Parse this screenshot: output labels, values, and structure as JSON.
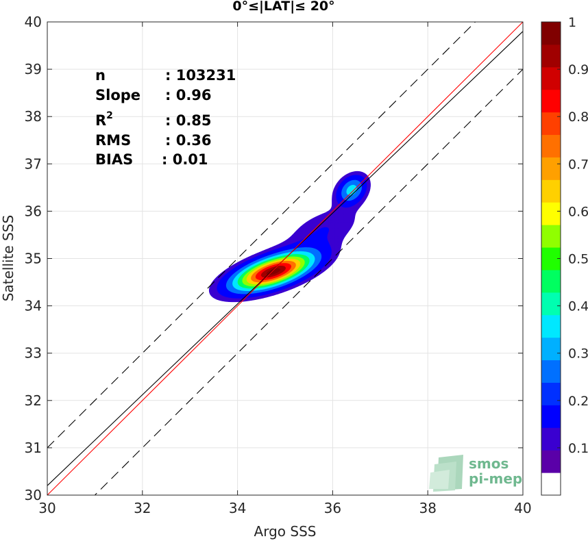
{
  "chart_data": {
    "type": "heatmap",
    "title": "0°≤|LAT|≤ 20°",
    "xlabel": "Argo SSS",
    "ylabel": "Satellite SSS",
    "xlim": [
      30,
      40
    ],
    "ylim": [
      30,
      40
    ],
    "xticks": [
      "30",
      "32",
      "34",
      "36",
      "38",
      "40"
    ],
    "yticks": [
      "30",
      "31",
      "32",
      "33",
      "34",
      "35",
      "36",
      "37",
      "38",
      "39",
      "40"
    ],
    "grid": true,
    "stats": [
      {
        "label": "n",
        "value": ": 103231"
      },
      {
        "label": "Slope",
        "value": ": 0.96"
      },
      {
        "label": "R",
        "sup": "2",
        "value": ": 0.85"
      },
      {
        "label": "RMS",
        "value": ": 0.36"
      },
      {
        "label": "BIAS",
        "value": ": 0.01"
      }
    ],
    "lines": {
      "identity": {
        "slope": 1.0,
        "intercept": 0.0,
        "color": "#ff0000"
      },
      "regression": {
        "slope": 0.96,
        "intercept": 1.4,
        "color": "#000000"
      },
      "upper_bound": {
        "slope": 1.0,
        "intercept": 1.0,
        "color": "#000000"
      },
      "lower_bound": {
        "slope": 1.0,
        "intercept": -1.0,
        "color": "#000000"
      }
    },
    "density": {
      "peaks": [
        {
          "x": 34.75,
          "y": 34.72,
          "sx": 0.55,
          "sy": 0.26,
          "corr": 0.62,
          "amp": 1.0
        },
        {
          "x": 36.4,
          "y": 36.45,
          "sx": 0.2,
          "sy": 0.2,
          "corr": 0.3,
          "amp": 0.34
        },
        {
          "x": 35.8,
          "y": 35.6,
          "sx": 0.55,
          "sy": 0.35,
          "corr": 0.55,
          "amp": 0.1
        }
      ],
      "levels": [
        0.05,
        0.1,
        0.2,
        0.3,
        0.4,
        0.5,
        0.6,
        0.7,
        0.8,
        0.9,
        0.97
      ]
    },
    "colorbar": {
      "min": 0,
      "max": 1,
      "tick_values": [
        0.1,
        0.2,
        0.3,
        0.4,
        0.5,
        0.6,
        0.7,
        0.8,
        0.9,
        1
      ],
      "tick_labels": [
        "0.1",
        "0.2",
        "0.3",
        "0.4",
        "0.5",
        "0.6",
        "0.7",
        "0.8",
        "0.9",
        "1"
      ],
      "colors": [
        "#ffffff",
        "#5a00a8",
        "#3a00d0",
        "#0000ff",
        "#0030ff",
        "#0070ff",
        "#00b0ff",
        "#00e8ff",
        "#00ffb0",
        "#00ff60",
        "#20ff00",
        "#90ff00",
        "#ffff00",
        "#ffd000",
        "#ffa000",
        "#ff7000",
        "#ff4000",
        "#ff0000",
        "#d00000",
        "#a00000",
        "#800000"
      ]
    }
  },
  "logo": {
    "line1": "smos",
    "line2": "pi-mep",
    "color": "#6fb88f"
  }
}
